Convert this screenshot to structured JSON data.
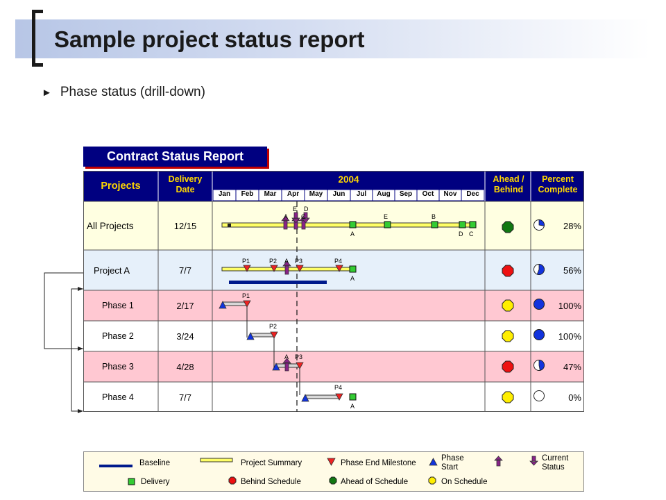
{
  "page": {
    "title": "Sample project status report",
    "subtitle": "Phase status (drill-down)"
  },
  "report": {
    "title": "Contract Status Report",
    "headers": {
      "projects": "Projects",
      "delivery": "Delivery Date",
      "year": "2004",
      "ahead": "Ahead / Behind",
      "percent": "Percent Complete"
    },
    "months": [
      "Jan",
      "Feb",
      "Mar",
      "Apr",
      "May",
      "Jun",
      "Jul",
      "Aug",
      "Sep",
      "Oct",
      "Nov",
      "Dec"
    ],
    "rows": [
      {
        "name": "All Projects",
        "delivery": "12/15",
        "status": "ahead",
        "percent": "28%",
        "fraction": 0.28
      },
      {
        "name": "Project A",
        "delivery": "7/7",
        "status": "behind",
        "percent": "56%",
        "fraction": 0.56
      },
      {
        "name": "Phase 1",
        "delivery": "2/17",
        "status": "on-schedule",
        "percent": "100%",
        "fraction": 1.0
      },
      {
        "name": "Phase 2",
        "delivery": "3/24",
        "status": "on-schedule",
        "percent": "100%",
        "fraction": 1.0
      },
      {
        "name": "Phase 3",
        "delivery": "4/28",
        "status": "behind",
        "percent": "47%",
        "fraction": 0.47
      },
      {
        "name": "Phase 4",
        "delivery": "7/7",
        "status": "on-schedule",
        "percent": "0%",
        "fraction": 0.0
      }
    ],
    "markers": {
      "a": "A",
      "b": "B",
      "c": "C",
      "d": "D",
      "e": "E",
      "p1": "P1",
      "p2": "P2",
      "p3": "P3",
      "p4": "P4"
    }
  },
  "legend": {
    "baseline": "Baseline",
    "summary": "Project Summary",
    "phase_end": "Phase End Milestone",
    "phase_start": "Phase Start",
    "current": "Current Status",
    "delivery": "Delivery",
    "behind": "Behind Schedule",
    "ahead": "Ahead of Schedule",
    "on": "On Schedule"
  },
  "colors": {
    "navy": "#000080",
    "header_text": "#FFD700",
    "summary_bar": "#FFFF66",
    "delivery": "#33CC33",
    "behind": "#EE1111",
    "ahead": "#117711",
    "on_schedule": "#FFEE00",
    "phase_start": "#1133DD",
    "phase_end": "#EE2222",
    "current_status": "#882288",
    "row_cream": "#FFFFE1",
    "row_blue": "#E6F0FA",
    "row_pink": "#FFC8D2"
  }
}
